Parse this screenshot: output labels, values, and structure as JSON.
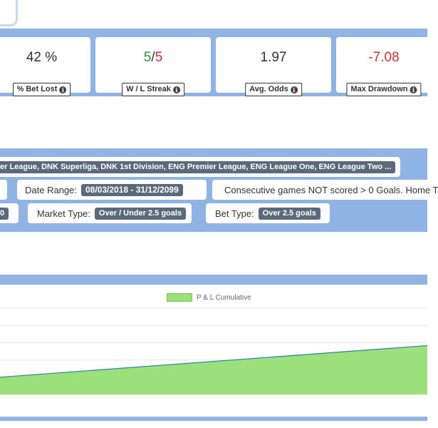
{
  "stats": [
    {
      "value": "42 %",
      "label": "% Bet Lost",
      "color": "#333333"
    },
    {
      "win": "5",
      "sep": "/",
      "loss": "5",
      "label": "W / L Streak"
    },
    {
      "value": "1.97",
      "label": "Avg. Odds",
      "color": "#333333"
    },
    {
      "value": "-7.08",
      "label": "Max Drawdown",
      "color": "#d0312d"
    }
  ],
  "filters": {
    "leagues": "er League, DNK Superliga, DNK 1st Division, ENG Premier League, ENG League One, ENG League Two ...",
    "date_range_label": "Date Range:",
    "date_range_value": "08/03/2018 - 31/12/2099",
    "strategy": "Consecutive games NOT scored > 0 Goals. Home T",
    "left_value_fragment": "0",
    "market_type_label": "Market Type:",
    "market_type_value": "Over / Under 2.5 goals",
    "bet_type_label": "Bet Type:",
    "bet_type_value": "Over 2.5 goals"
  },
  "chart_data": {
    "type": "area",
    "title": "",
    "series": [
      {
        "name": "P & L Cumulative",
        "color": "#9be07a",
        "x": [
          0,
          1
        ],
        "values": [
          3.0,
          8.5
        ]
      }
    ],
    "ylim": [
      0,
      15
    ],
    "grid": true,
    "legend": "top-center"
  }
}
